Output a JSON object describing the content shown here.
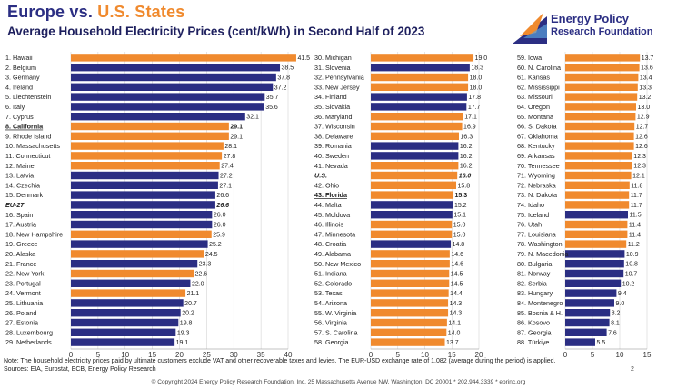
{
  "header": {
    "title_europe": "Europe",
    "title_vs": " vs. ",
    "title_us": "U.S. States",
    "subtitle": "Average Household Electricity Prices (cent/kWh) in Second Half of 2023"
  },
  "logo": {
    "line1": "Energy Policy",
    "line2": "Research Foundation"
  },
  "colors": {
    "europe": "#2b2e83",
    "us": "#f08a2e"
  },
  "chart_data": {
    "type": "bar",
    "orientation": "horizontal",
    "panels": [
      {
        "xlim": [
          0,
          40
        ],
        "ticks": [
          "0",
          "5",
          "10",
          "15",
          "20",
          "25",
          "30",
          "35",
          "40"
        ],
        "rows": [
          {
            "label": "1. Hawaii",
            "value": 41.5,
            "group": "us",
            "value_label": "41.5"
          },
          {
            "label": "2. Belgium",
            "value": 38.5,
            "group": "eu",
            "value_label": "38.5"
          },
          {
            "label": "3. Germany",
            "value": 37.8,
            "group": "eu",
            "value_label": "37.8"
          },
          {
            "label": "4. Ireland",
            "value": 37.2,
            "group": "eu",
            "value_label": "37.2"
          },
          {
            "label": "5. Liechtenstein",
            "value": 35.7,
            "group": "eu",
            "value_label": "35.7"
          },
          {
            "label": "6. Italy",
            "value": 35.6,
            "group": "eu",
            "value_label": "35.6"
          },
          {
            "label": "7. Cyprus",
            "value": 32.1,
            "group": "eu",
            "value_label": "32.1"
          },
          {
            "label": "8. California",
            "value": 29.1,
            "group": "us",
            "value_label": "29.1",
            "highlight": true
          },
          {
            "label": "9. Rhode Island",
            "value": 29.1,
            "group": "us",
            "value_label": "29.1"
          },
          {
            "label": "10. Massachusetts",
            "value": 28.1,
            "group": "us",
            "value_label": "28.1"
          },
          {
            "label": "11. Connecticut",
            "value": 27.8,
            "group": "us",
            "value_label": "27.8"
          },
          {
            "label": "12. Maine",
            "value": 27.4,
            "group": "us",
            "value_label": "27.4"
          },
          {
            "label": "13. Latvia",
            "value": 27.2,
            "group": "eu",
            "value_label": "27.2"
          },
          {
            "label": "14. Czechia",
            "value": 27.1,
            "group": "eu",
            "value_label": "27.1"
          },
          {
            "label": "15. Denmark",
            "value": 26.6,
            "group": "eu",
            "value_label": "26.6"
          },
          {
            "label": "EU-27",
            "value": 26.6,
            "group": "eu",
            "value_label": "26.6",
            "aggregate": true
          },
          {
            "label": "16. Spain",
            "value": 26.0,
            "group": "eu",
            "value_label": "26.0"
          },
          {
            "label": "17. Austria",
            "value": 26.0,
            "group": "eu",
            "value_label": "26.0"
          },
          {
            "label": "18. New Hampshire",
            "value": 25.9,
            "group": "us",
            "value_label": "25.9"
          },
          {
            "label": "19. Greece",
            "value": 25.2,
            "group": "eu",
            "value_label": "25.2"
          },
          {
            "label": "20. Alaska",
            "value": 24.5,
            "group": "us",
            "value_label": "24.5"
          },
          {
            "label": "21. France",
            "value": 23.3,
            "group": "eu",
            "value_label": "23.3"
          },
          {
            "label": "22. New York",
            "value": 22.6,
            "group": "us",
            "value_label": "22.6"
          },
          {
            "label": "23. Portugal",
            "value": 22.0,
            "group": "eu",
            "value_label": "22.0"
          },
          {
            "label": "24. Vermont",
            "value": 21.1,
            "group": "us",
            "value_label": "21.1"
          },
          {
            "label": "25. Lithuania",
            "value": 20.7,
            "group": "eu",
            "value_label": "20.7"
          },
          {
            "label": "26. Poland",
            "value": 20.2,
            "group": "eu",
            "value_label": "20.2"
          },
          {
            "label": "27. Estonia",
            "value": 19.8,
            "group": "eu",
            "value_label": "19.8"
          },
          {
            "label": "28. Luxembourg",
            "value": 19.3,
            "group": "eu",
            "value_label": "19.3"
          },
          {
            "label": "29. Netherlands",
            "value": 19.1,
            "group": "eu",
            "value_label": "19.1"
          }
        ]
      },
      {
        "xlim": [
          0,
          20
        ],
        "ticks": [
          "0",
          "5",
          "10",
          "15",
          "20"
        ],
        "rows": [
          {
            "label": "30. Michigan",
            "value": 19.0,
            "group": "us",
            "value_label": "19.0"
          },
          {
            "label": "31. Slovenia",
            "value": 18.3,
            "group": "eu",
            "value_label": "18.3"
          },
          {
            "label": "32. Pennsylvania",
            "value": 18.0,
            "group": "us",
            "value_label": "18.0"
          },
          {
            "label": "33. New Jersey",
            "value": 18.0,
            "group": "us",
            "value_label": "18.0"
          },
          {
            "label": "34. Finland",
            "value": 17.8,
            "group": "eu",
            "value_label": "17.8"
          },
          {
            "label": "35. Slovakia",
            "value": 17.7,
            "group": "eu",
            "value_label": "17.7"
          },
          {
            "label": "36. Maryland",
            "value": 17.1,
            "group": "us",
            "value_label": "17.1"
          },
          {
            "label": "37. Wisconsin",
            "value": 16.9,
            "group": "us",
            "value_label": "16.9"
          },
          {
            "label": "38. Delaware",
            "value": 16.3,
            "group": "us",
            "value_label": "16.3"
          },
          {
            "label": "39. Romania",
            "value": 16.2,
            "group": "eu",
            "value_label": "16.2"
          },
          {
            "label": "40. Sweden",
            "value": 16.2,
            "group": "eu",
            "value_label": "16.2"
          },
          {
            "label": "41. Nevada",
            "value": 16.2,
            "group": "us",
            "value_label": "16.2"
          },
          {
            "label": "U.S.",
            "value": 16.0,
            "group": "us",
            "value_label": "16.0",
            "aggregate": true
          },
          {
            "label": "42. Ohio",
            "value": 15.8,
            "group": "us",
            "value_label": "15.8"
          },
          {
            "label": "43. Florida",
            "value": 15.3,
            "group": "us",
            "value_label": "15.3",
            "highlight": true
          },
          {
            "label": "44. Malta",
            "value": 15.2,
            "group": "eu",
            "value_label": "15.2"
          },
          {
            "label": "45. Moldova",
            "value": 15.1,
            "group": "eu",
            "value_label": "15.1"
          },
          {
            "label": "46. Illinois",
            "value": 15.0,
            "group": "us",
            "value_label": "15.0"
          },
          {
            "label": "47. Minnesota",
            "value": 15.0,
            "group": "us",
            "value_label": "15.0"
          },
          {
            "label": "48. Croatia",
            "value": 14.8,
            "group": "eu",
            "value_label": "14.8"
          },
          {
            "label": "49. Alabama",
            "value": 14.6,
            "group": "us",
            "value_label": "14.6"
          },
          {
            "label": "50. New Mexico",
            "value": 14.6,
            "group": "us",
            "value_label": "14.6"
          },
          {
            "label": "51. Indiana",
            "value": 14.5,
            "group": "us",
            "value_label": "14.5"
          },
          {
            "label": "52. Colorado",
            "value": 14.5,
            "group": "us",
            "value_label": "14.5"
          },
          {
            "label": "53. Texas",
            "value": 14.4,
            "group": "us",
            "value_label": "14.4"
          },
          {
            "label": "54. Arizona",
            "value": 14.3,
            "group": "us",
            "value_label": "14.3"
          },
          {
            "label": "55. W. Virginia",
            "value": 14.3,
            "group": "us",
            "value_label": "14.3"
          },
          {
            "label": "56. Virginia",
            "value": 14.1,
            "group": "us",
            "value_label": "14.1"
          },
          {
            "label": "57. S. Carolina",
            "value": 14.0,
            "group": "us",
            "value_label": "14.0"
          },
          {
            "label": "58. Georgia",
            "value": 13.7,
            "group": "us",
            "value_label": "13.7"
          }
        ]
      },
      {
        "xlim": [
          0,
          15
        ],
        "ticks": [
          "0",
          "5",
          "10",
          "15"
        ],
        "rows": [
          {
            "label": "59. Iowa",
            "value": 13.7,
            "group": "us",
            "value_label": "13.7"
          },
          {
            "label": "60. N. Carolina",
            "value": 13.6,
            "group": "us",
            "value_label": "13.6"
          },
          {
            "label": "61. Kansas",
            "value": 13.4,
            "group": "us",
            "value_label": "13.4"
          },
          {
            "label": "62. Mississippi",
            "value": 13.3,
            "group": "us",
            "value_label": "13.3"
          },
          {
            "label": "63. Missouri",
            "value": 13.2,
            "group": "us",
            "value_label": "13.2"
          },
          {
            "label": "64. Oregon",
            "value": 13.0,
            "group": "us",
            "value_label": "13.0"
          },
          {
            "label": "65. Montana",
            "value": 12.9,
            "group": "us",
            "value_label": "12.9"
          },
          {
            "label": "66. S. Dakota",
            "value": 12.7,
            "group": "us",
            "value_label": "12.7"
          },
          {
            "label": "67. Oklahoma",
            "value": 12.6,
            "group": "us",
            "value_label": "12.6"
          },
          {
            "label": "68. Kentucky",
            "value": 12.6,
            "group": "us",
            "value_label": "12.6"
          },
          {
            "label": "69. Arkansas",
            "value": 12.3,
            "group": "us",
            "value_label": "12.3"
          },
          {
            "label": "70. Tennessee",
            "value": 12.3,
            "group": "us",
            "value_label": "12.3"
          },
          {
            "label": "71. Wyoming",
            "value": 12.1,
            "group": "us",
            "value_label": "12.1"
          },
          {
            "label": "72. Nebraska",
            "value": 11.8,
            "group": "us",
            "value_label": "11.8"
          },
          {
            "label": "73. N. Dakota",
            "value": 11.7,
            "group": "us",
            "value_label": "11.7"
          },
          {
            "label": "74. Idaho",
            "value": 11.7,
            "group": "us",
            "value_label": "11.7"
          },
          {
            "label": "75. Iceland",
            "value": 11.5,
            "group": "eu",
            "value_label": "11.5"
          },
          {
            "label": "76. Utah",
            "value": 11.4,
            "group": "us",
            "value_label": "11.4"
          },
          {
            "label": "77. Louisiana",
            "value": 11.4,
            "group": "us",
            "value_label": "11.4"
          },
          {
            "label": "78. Washington",
            "value": 11.2,
            "group": "us",
            "value_label": "11.2"
          },
          {
            "label": "79. N. Macedonia",
            "value": 10.9,
            "group": "eu",
            "value_label": "10.9"
          },
          {
            "label": "80. Bulgaria",
            "value": 10.8,
            "group": "eu",
            "value_label": "10.8"
          },
          {
            "label": "81. Norway",
            "value": 10.7,
            "group": "eu",
            "value_label": "10.7"
          },
          {
            "label": "82. Serbia",
            "value": 10.2,
            "group": "eu",
            "value_label": "10.2"
          },
          {
            "label": "83. Hungary",
            "value": 9.4,
            "group": "eu",
            "value_label": "9.4"
          },
          {
            "label": "84. Montenegro",
            "value": 9.0,
            "group": "eu",
            "value_label": "9.0"
          },
          {
            "label": "85. Bosnia & H.",
            "value": 8.2,
            "group": "eu",
            "value_label": "8.2"
          },
          {
            "label": "86. Kosovo",
            "value": 8.1,
            "group": "eu",
            "value_label": "8.1"
          },
          {
            "label": "87. Georgia",
            "value": 7.6,
            "group": "eu",
            "value_label": "7.6"
          },
          {
            "label": "88. Türkiye",
            "value": 5.5,
            "group": "eu",
            "value_label": "5.5"
          }
        ]
      }
    ]
  },
  "footer": {
    "note": "Note: The household electricity prices paid by ultimate customers exclude VAT and other recoverable taxes and levies. The EUR-USD exchange rate of 1.082 (average during the period) is applied.",
    "sources": "Sources: EIA, Eurostat, ECB, Energy Policy Research",
    "page": "2",
    "copyright": "© Copyright 2024 Energy Policy Research Foundation, Inc. 25 Massachusetts Avenue NW, Washington, DC 20001 * 202.944.3339 * eprinc.org"
  }
}
